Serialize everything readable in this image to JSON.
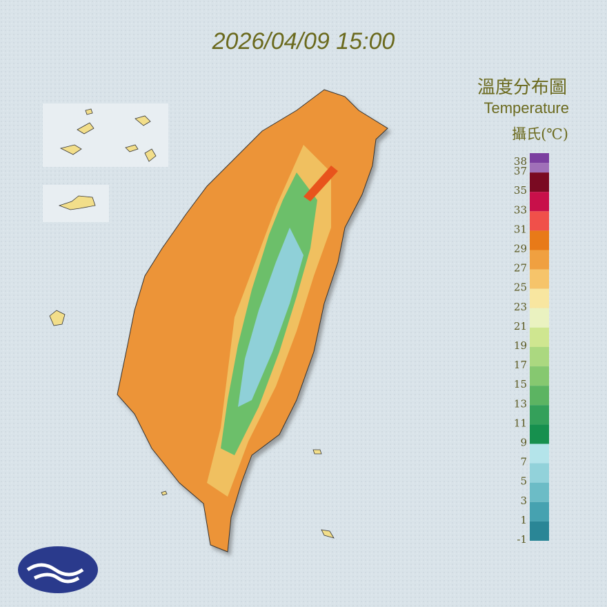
{
  "header": {
    "title": "2026/04/09 15:00"
  },
  "legend": {
    "title": "溫度分布圖",
    "subtitle": "Temperature",
    "unit": "攝氏(℃)",
    "ticks": [
      38,
      37,
      35,
      33,
      31,
      29,
      27,
      25,
      23,
      21,
      19,
      17,
      15,
      13,
      11,
      9,
      7,
      5,
      3,
      1,
      -1
    ],
    "lim": [
      -1,
      39
    ],
    "colors": [
      "#7b3fa0",
      "#a070b8",
      "#7a0a22",
      "#c8104a",
      "#f0504a",
      "#e87a18",
      "#f0a040",
      "#f6c46a",
      "#f8e6a0",
      "#eaf2c0",
      "#cfe690",
      "#abd880",
      "#86c870",
      "#5cb462",
      "#34a05a",
      "#16904e",
      "#b4e4ea",
      "#92d2da",
      "#6cbcc6",
      "#46a2b0",
      "#2a8696"
    ]
  }
}
